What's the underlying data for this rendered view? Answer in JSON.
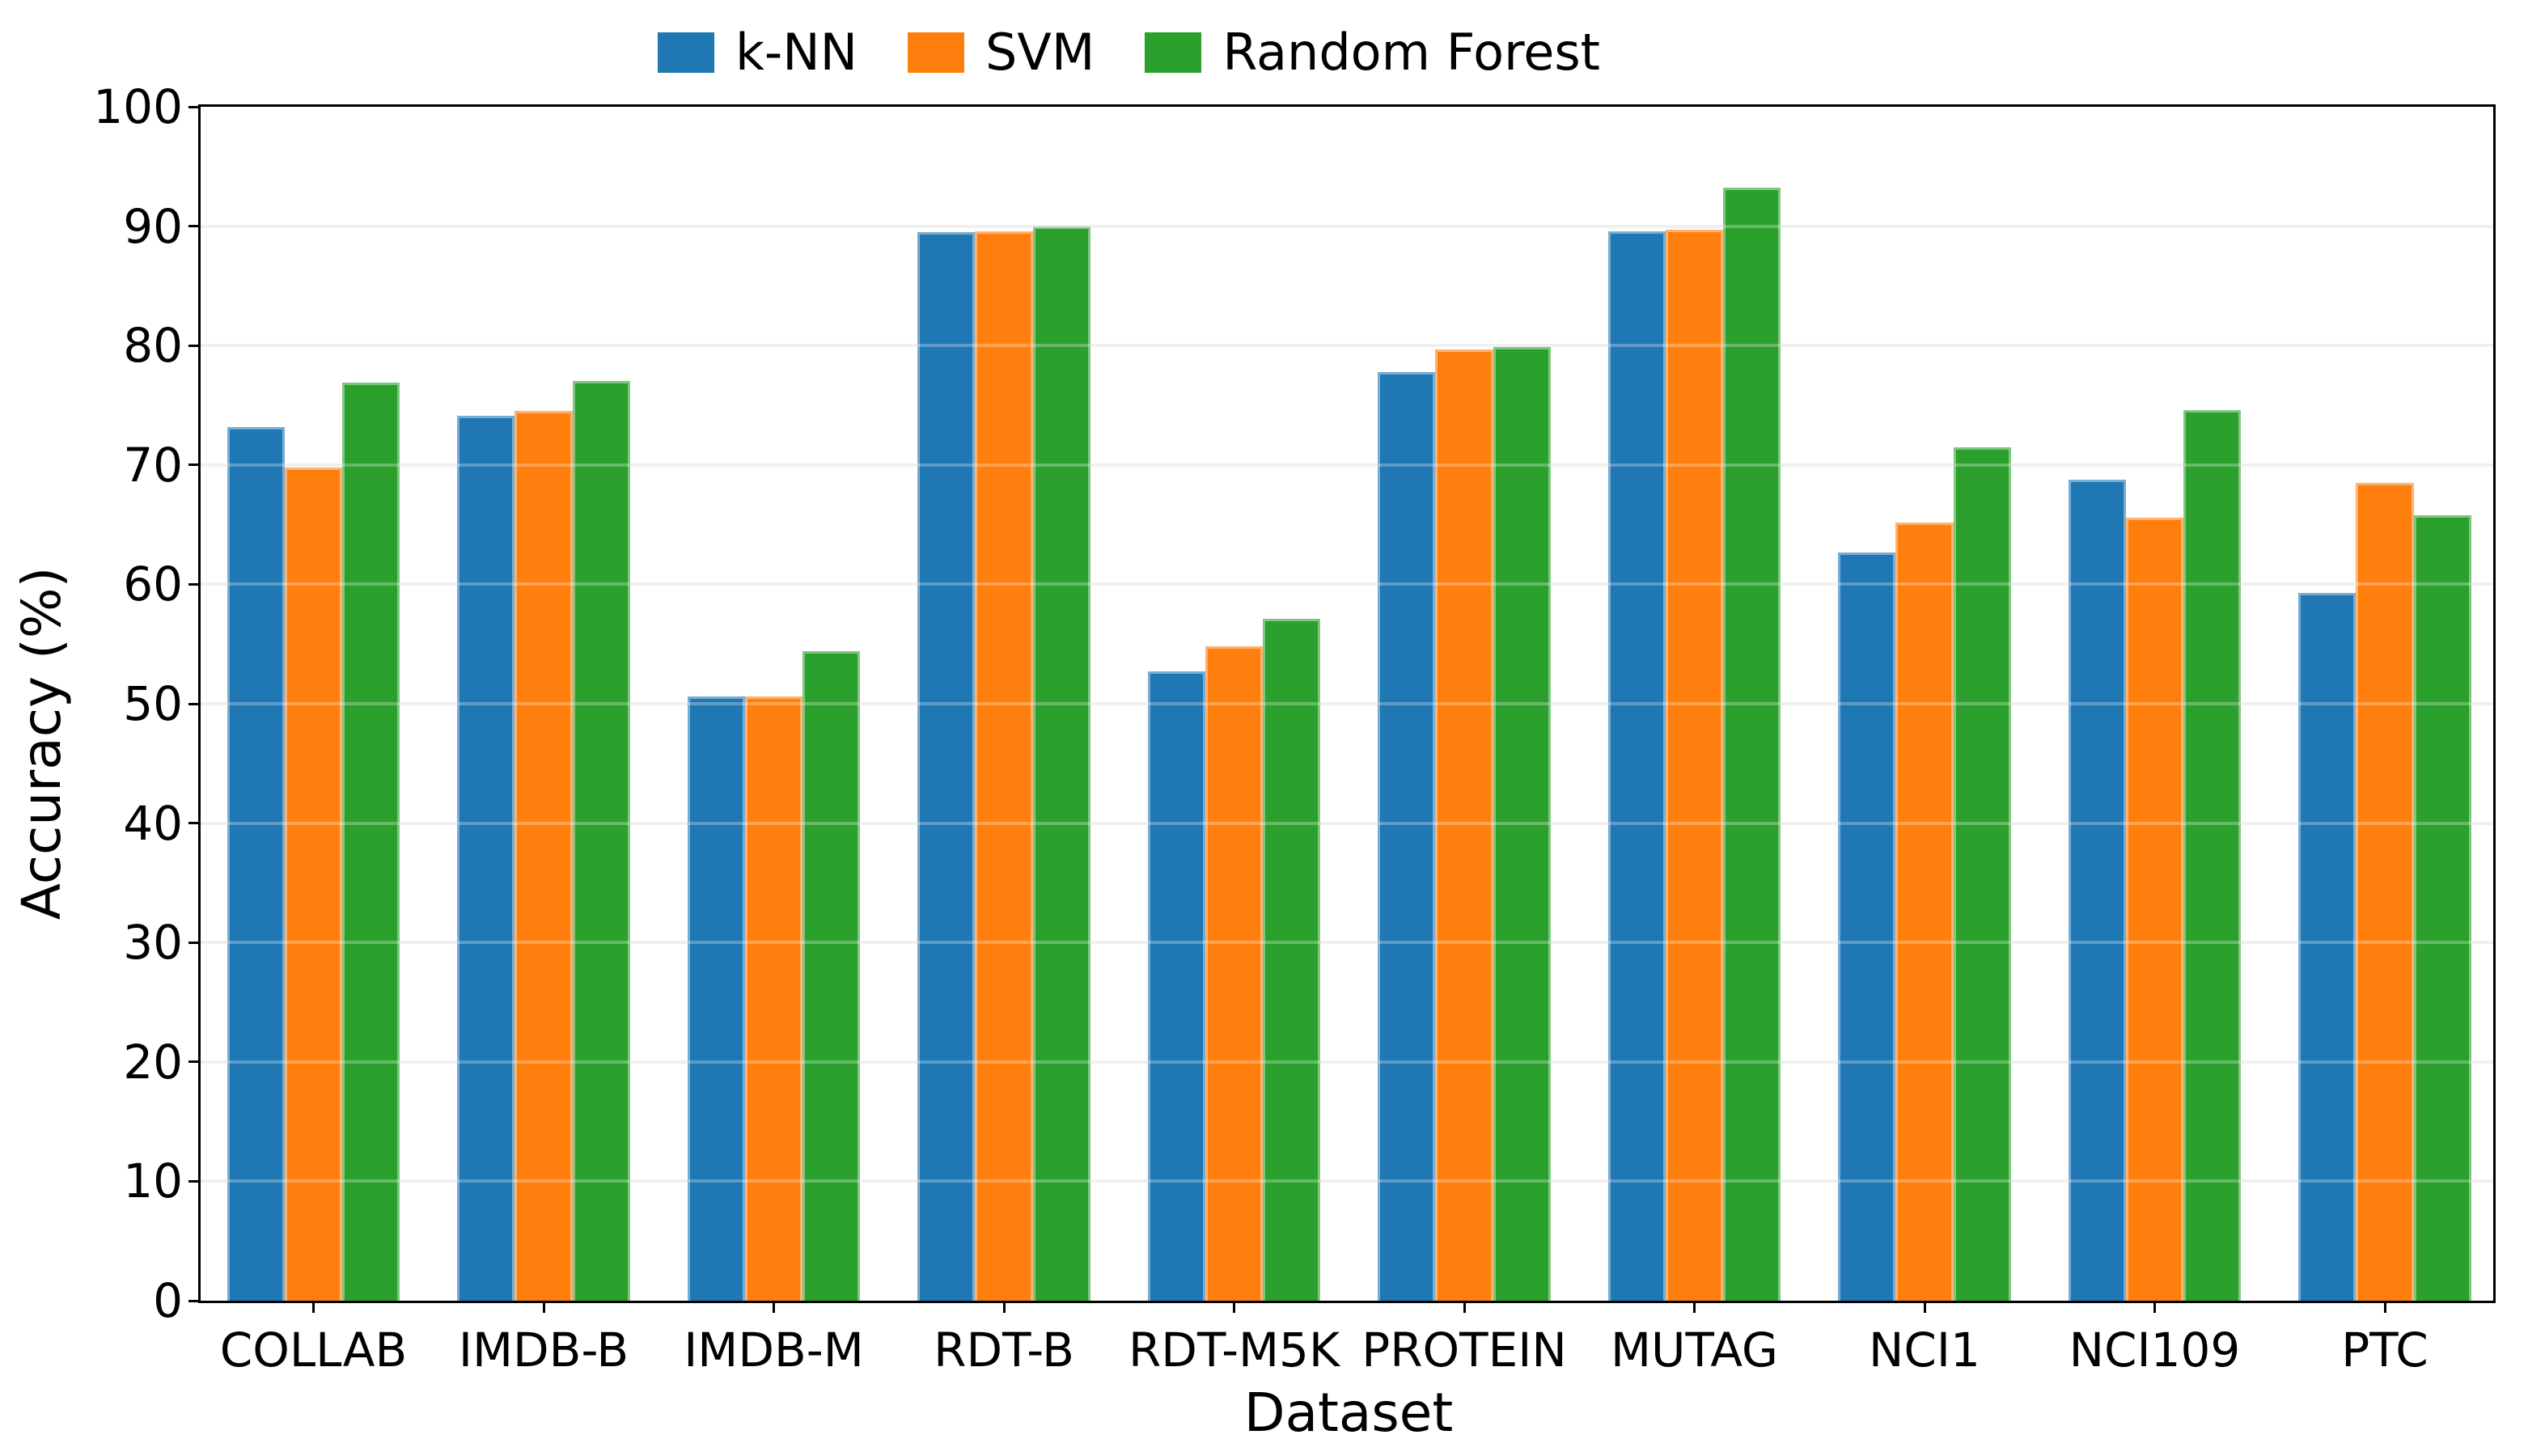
{
  "chart_data": {
    "type": "bar",
    "title": "",
    "xlabel": "Dataset",
    "ylabel": "Accuracy (%)",
    "ylim": [
      0,
      100
    ],
    "yticks": [
      0,
      10,
      20,
      30,
      40,
      50,
      60,
      70,
      80,
      90,
      100
    ],
    "grid": true,
    "legend_position": "top-center",
    "categories": [
      "COLLAB",
      "IMDB-B",
      "IMDB-M",
      "RDT-B",
      "RDT-M5K",
      "PROTEIN",
      "MUTAG",
      "NCI1",
      "NCI109",
      "PTC"
    ],
    "series": [
      {
        "name": "k-NN",
        "color": "#1f77b4",
        "values": [
          73.2,
          74.1,
          50.6,
          89.5,
          52.7,
          77.8,
          89.6,
          62.7,
          68.8,
          59.3
        ]
      },
      {
        "name": "SVM",
        "color": "#ff7f0e",
        "values": [
          69.8,
          74.5,
          50.6,
          89.6,
          54.8,
          79.7,
          89.7,
          65.2,
          65.6,
          68.5
        ]
      },
      {
        "name": "Random Forest",
        "color": "#2ca02c",
        "values": [
          76.9,
          77.0,
          54.4,
          90.0,
          57.1,
          79.9,
          93.2,
          71.5,
          74.6,
          65.8
        ]
      }
    ]
  }
}
